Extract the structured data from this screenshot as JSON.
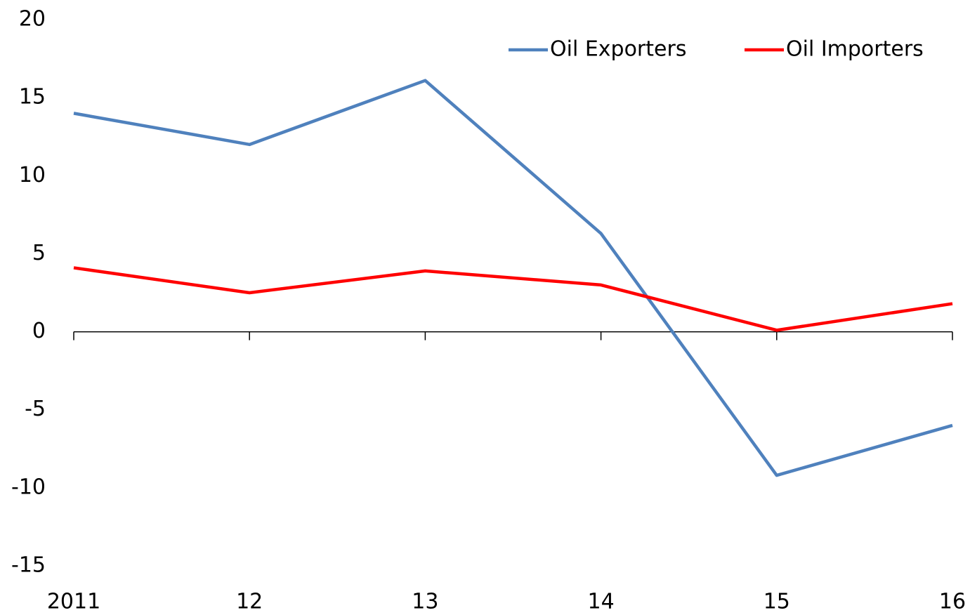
{
  "chart_data": {
    "type": "line",
    "categories": [
      "2011",
      "12",
      "13",
      "14",
      "15",
      "16"
    ],
    "series": [
      {
        "name": "Oil Exporters",
        "color": "#4f81bd",
        "values": [
          14,
          12,
          16.1,
          6.3,
          -9.2,
          -6.0
        ]
      },
      {
        "name": "Oil Importers",
        "color": "#ff0000",
        "values": [
          4.1,
          2.5,
          3.9,
          3.0,
          0.1,
          1.8
        ]
      }
    ],
    "ylim": [
      -15,
      20
    ],
    "yticks": [
      -15,
      -10,
      -5,
      0,
      5,
      10,
      15,
      20
    ],
    "grid": false,
    "legend": "top-right"
  }
}
